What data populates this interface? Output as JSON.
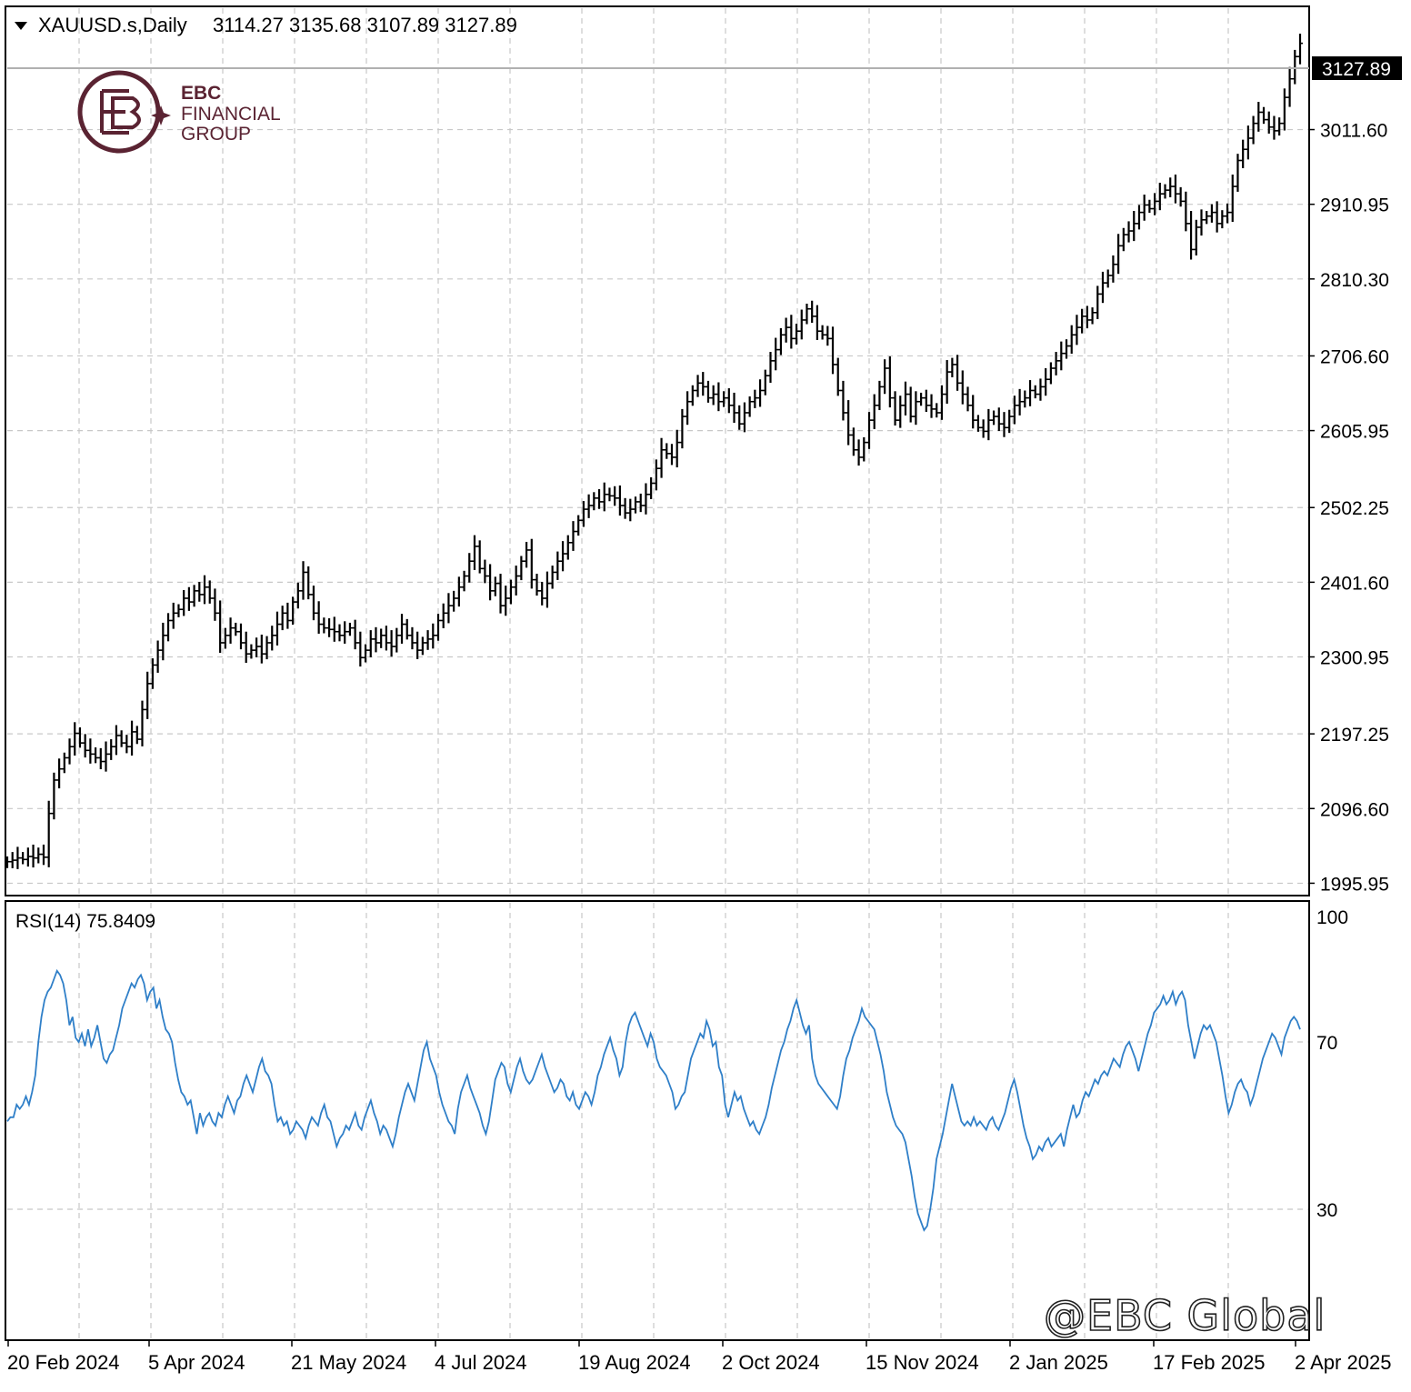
{
  "header": {
    "symbol": "XAUUSD.s,Daily",
    "ohlc": "3114.27 3135.68 3107.89 3127.89"
  },
  "logo": {
    "line1": "EBC",
    "line2": "FINANCIAL",
    "line3": "GROUP",
    "color": "#5a2332"
  },
  "watermark": "@EBC Global",
  "price_tag": "3127.89",
  "rsi_label": "RSI(14) 75.8409",
  "colors": {
    "bars": "#000000",
    "rsi": "#2f7fc8",
    "grid": "#c8c8c8",
    "tag_bg": "#000000",
    "tag_fg": "#ffffff"
  },
  "chart_data": [
    {
      "type": "ohlc",
      "title": "XAUUSD.s,Daily",
      "y_ticks": [
        1995.95,
        2096.6,
        2197.25,
        2300.95,
        2401.6,
        2502.25,
        2605.95,
        2706.6,
        2810.3,
        2910.95,
        3011.6
      ],
      "y_tick_labels": [
        "1995.95",
        "2096.60",
        "2197.25",
        "2300.95",
        "2401.60",
        "2502.25",
        "2605.95",
        "2706.60",
        "2810.30",
        "2910.95",
        "3011.60"
      ],
      "ylim": [
        1983.0,
        3174.0
      ],
      "x_tick_labels": [
        "20 Feb 2024",
        "5 Apr 2024",
        "21 May 2024",
        "4 Jul 2024",
        "19 Aug 2024",
        "2 Oct 2024",
        "15 Nov 2024",
        "2 Jan 2025",
        "17 Feb 2025",
        "2 Apr 2025"
      ],
      "last_price": 3127.89,
      "closes": [
        2025,
        2027,
        2030,
        2028,
        2032,
        2030,
        2035,
        2031,
        2090,
        2135,
        2150,
        2165,
        2180,
        2198,
        2185,
        2175,
        2170,
        2165,
        2160,
        2170,
        2180,
        2195,
        2185,
        2180,
        2200,
        2190,
        2230,
        2265,
        2290,
        2310,
        2330,
        2350,
        2360,
        2365,
        2380,
        2375,
        2390,
        2385,
        2395,
        2380,
        2360,
        2320,
        2330,
        2340,
        2335,
        2320,
        2305,
        2310,
        2315,
        2305,
        2320,
        2330,
        2345,
        2360,
        2350,
        2375,
        2390,
        2415,
        2385,
        2360,
        2345,
        2340,
        2338,
        2335,
        2330,
        2335,
        2340,
        2320,
        2300,
        2310,
        2325,
        2320,
        2330,
        2320,
        2315,
        2330,
        2345,
        2330,
        2320,
        2310,
        2320,
        2325,
        2330,
        2350,
        2360,
        2370,
        2380,
        2395,
        2410,
        2430,
        2450,
        2420,
        2410,
        2390,
        2400,
        2370,
        2380,
        2395,
        2410,
        2430,
        2445,
        2405,
        2390,
        2380,
        2400,
        2415,
        2430,
        2440,
        2455,
        2470,
        2485,
        2500,
        2505,
        2515,
        2510,
        2520,
        2518,
        2515,
        2505,
        2495,
        2500,
        2510,
        2505,
        2520,
        2535,
        2555,
        2580,
        2575,
        2570,
        2590,
        2625,
        2645,
        2660,
        2670,
        2665,
        2650,
        2655,
        2645,
        2650,
        2640,
        2630,
        2615,
        2630,
        2645,
        2650,
        2660,
        2680,
        2700,
        2715,
        2735,
        2745,
        2730,
        2740,
        2755,
        2770,
        2760,
        2740,
        2735,
        2730,
        2695,
        2660,
        2630,
        2600,
        2580,
        2570,
        2590,
        2620,
        2640,
        2665,
        2690,
        2650,
        2620,
        2640,
        2655,
        2625,
        2645,
        2650,
        2640,
        2635,
        2630,
        2655,
        2685,
        2695,
        2670,
        2655,
        2640,
        2620,
        2610,
        2605,
        2620,
        2625,
        2615,
        2610,
        2625,
        2640,
        2645,
        2650,
        2660,
        2655,
        2665,
        2675,
        2690,
        2700,
        2710,
        2720,
        2735,
        2745,
        2760,
        2755,
        2765,
        2790,
        2805,
        2815,
        2830,
        2855,
        2870,
        2875,
        2885,
        2900,
        2910,
        2905,
        2915,
        2925,
        2930,
        2935,
        2925,
        2915,
        2885,
        2850,
        2880,
        2890,
        2895,
        2900,
        2885,
        2895,
        2900,
        2935,
        2970,
        2985,
        3000,
        3020,
        3035,
        3025,
        3015,
        3010,
        3020,
        3055,
        3080,
        3110,
        3127.89
      ]
    },
    {
      "type": "line",
      "title": "RSI(14) 75.8409",
      "y_ticks": [
        100,
        70,
        30
      ],
      "y_tick_labels": [
        "100",
        "70",
        "30"
      ],
      "ylim": [
        0,
        100
      ],
      "last_value": 75.8409,
      "values": [
        51,
        52,
        52,
        55,
        54,
        55,
        57,
        55,
        58,
        62,
        70,
        76,
        80,
        82,
        83,
        85,
        87,
        86,
        84,
        80,
        74,
        76,
        71,
        70,
        72,
        69,
        73,
        69,
        71,
        74,
        70,
        66,
        65,
        67,
        68,
        71,
        74,
        78,
        80,
        82,
        84,
        83,
        85,
        86,
        84,
        80,
        82,
        83,
        78,
        80,
        76,
        73,
        72,
        70,
        65,
        61,
        58,
        57,
        55,
        56,
        52,
        48,
        53,
        50,
        52,
        53,
        51,
        50,
        53,
        52,
        55,
        57,
        55,
        53,
        56,
        57,
        60,
        62,
        60,
        58,
        61,
        64,
        66,
        63,
        62,
        60,
        55,
        51,
        52,
        50,
        51,
        48,
        49,
        51,
        50,
        49,
        47,
        50,
        52,
        51,
        50,
        53,
        55,
        52,
        51,
        48,
        45,
        47,
        48,
        50,
        49,
        51,
        53,
        50,
        49,
        52,
        54,
        56,
        53,
        51,
        48,
        50,
        49,
        47,
        45,
        48,
        52,
        55,
        58,
        60,
        58,
        56,
        60,
        64,
        68,
        70,
        66,
        64,
        62,
        58,
        55,
        53,
        51,
        50,
        48,
        54,
        58,
        60,
        62,
        59,
        57,
        55,
        53,
        50,
        48,
        51,
        56,
        61,
        63,
        65,
        64,
        60,
        58,
        61,
        64,
        66,
        63,
        61,
        60,
        61,
        63,
        65,
        67,
        64,
        62,
        60,
        58,
        59,
        61,
        60,
        57,
        56,
        58,
        55,
        54,
        56,
        58,
        57,
        55,
        58,
        62,
        64,
        67,
        69,
        71,
        68,
        66,
        62,
        64,
        70,
        74,
        76,
        77,
        75,
        73,
        71,
        69,
        72,
        70,
        66,
        64,
        63,
        62,
        60,
        58,
        54,
        55,
        57,
        58,
        62,
        66,
        68,
        70,
        72,
        71,
        75,
        73,
        69,
        70,
        64,
        62,
        55,
        52,
        55,
        58,
        56,
        57,
        54,
        52,
        50,
        51,
        49,
        48,
        50,
        52,
        55,
        59,
        62,
        65,
        68,
        70,
        73,
        75,
        78,
        80,
        77,
        74,
        72,
        74,
        66,
        62,
        60,
        59,
        58,
        57,
        56,
        55,
        54,
        57,
        62,
        66,
        68,
        71,
        73,
        75,
        78,
        76,
        75,
        74,
        73,
        70,
        67,
        63,
        58,
        55,
        52,
        50,
        49,
        48,
        46,
        42,
        38,
        33,
        29,
        27,
        25,
        26,
        30,
        35,
        42,
        45,
        48,
        52,
        56,
        60,
        57,
        54,
        51,
        50,
        51,
        50,
        52,
        50,
        51,
        50,
        49,
        51,
        52,
        50,
        49,
        51,
        53,
        56,
        59,
        61,
        58,
        54,
        50,
        47,
        45,
        42,
        43,
        45,
        44,
        46,
        47,
        45,
        46,
        47,
        48,
        45,
        49,
        52,
        55,
        52,
        53,
        56,
        58,
        57,
        59,
        61,
        60,
        62,
        63,
        62,
        64,
        66,
        65,
        64,
        67,
        69,
        70,
        68,
        66,
        63,
        66,
        69,
        72,
        74,
        77,
        78,
        79,
        81,
        79,
        80,
        82,
        79,
        81,
        82,
        80,
        74,
        70,
        66,
        69,
        72,
        74,
        73,
        74,
        72,
        70,
        66,
        62,
        57,
        53,
        55,
        58,
        60,
        61,
        59,
        58,
        55,
        57,
        60,
        63,
        66,
        68,
        70,
        72,
        71,
        69,
        67,
        71,
        73,
        75,
        76,
        75,
        73
      ]
    }
  ]
}
